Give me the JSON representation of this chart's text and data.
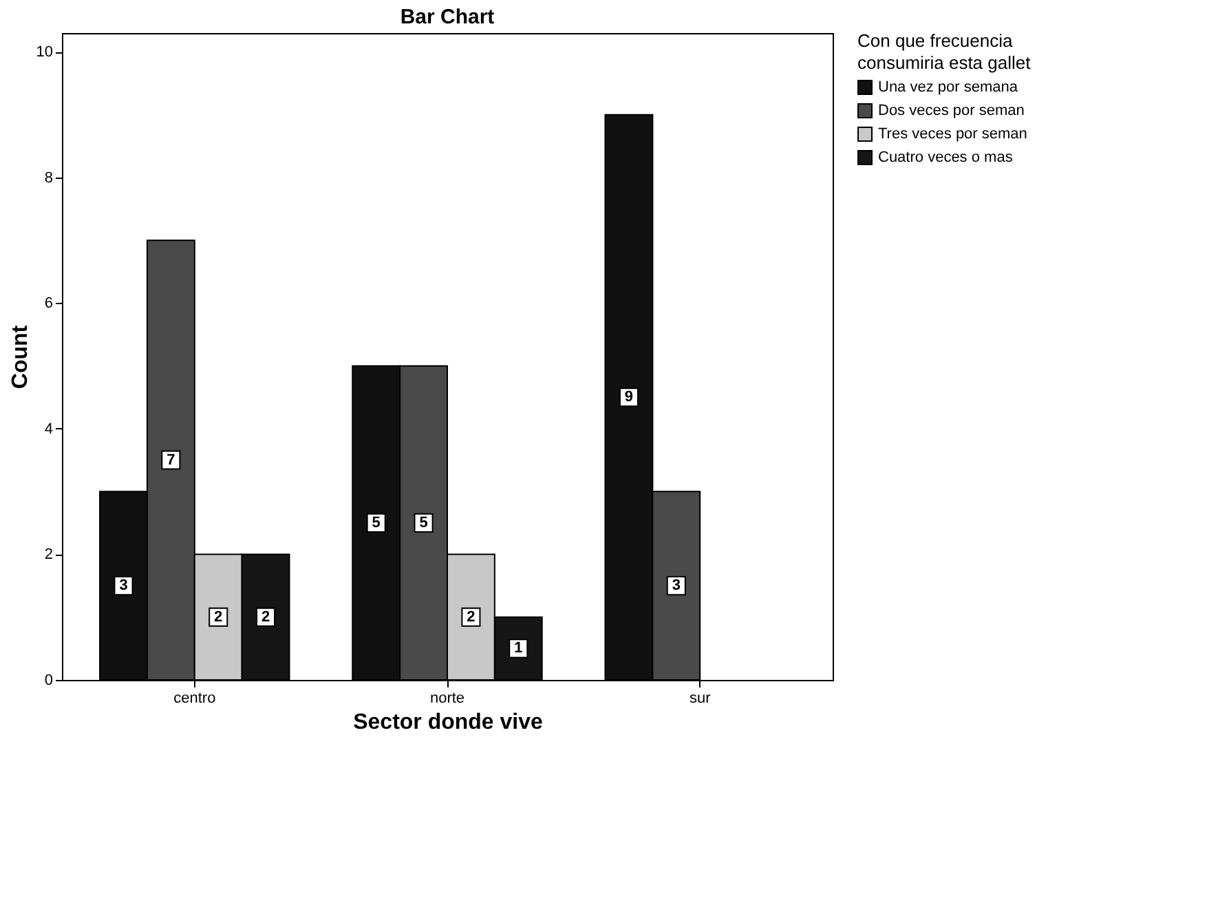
{
  "chart_data": {
    "type": "bar",
    "title": "Bar Chart",
    "xlabel": "Sector donde vive",
    "ylabel": "Count",
    "legend_title": "Con que frecuencia\nconsumiria esta gallet",
    "categories": [
      "centro",
      "norte",
      "sur"
    ],
    "series": [
      {
        "name": "Una vez por semana",
        "color": "#111111",
        "values": [
          3,
          5,
          9
        ]
      },
      {
        "name": "Dos veces por seman",
        "color": "#4a4a4a",
        "values": [
          7,
          5,
          3
        ]
      },
      {
        "name": "Tres veces por seman",
        "color": "#c8c8c8",
        "values": [
          2,
          2,
          null
        ]
      },
      {
        "name": "Cuatro veces o mas",
        "color": "#161616",
        "values": [
          2,
          1,
          null
        ]
      }
    ],
    "ylim": [
      0,
      10.3
    ],
    "yticks": [
      0,
      2,
      4,
      6,
      8,
      10
    ],
    "grid": false,
    "legend": "top right",
    "data_labels": true
  }
}
